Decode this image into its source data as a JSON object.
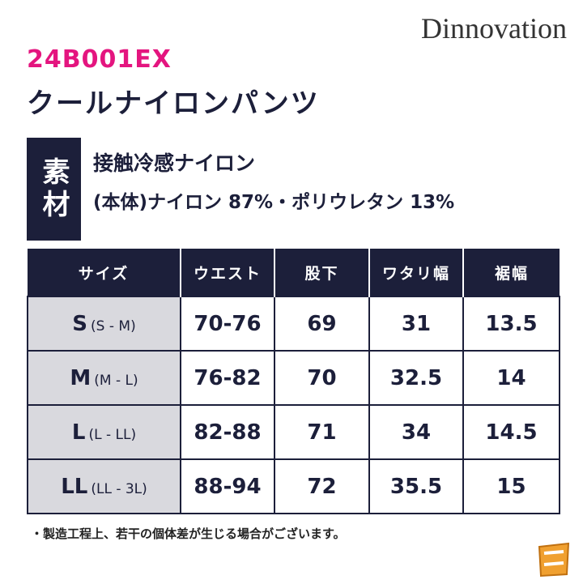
{
  "brand": "Dinnovation",
  "product": {
    "code": "24B001EX",
    "name": "クールナイロンパンツ"
  },
  "material": {
    "label": "素材",
    "lines": [
      "接触冷感ナイロン",
      "(本体)ナイロン 87%・ポリウレタン 13%"
    ]
  },
  "table": {
    "header": [
      "サイズ",
      "ウエスト",
      "股下",
      "ワタリ幅",
      "裾幅"
    ],
    "rows": [
      {
        "size": "S",
        "range": "(S - M)",
        "cells": [
          "70-76",
          "69",
          "31",
          "13.5"
        ]
      },
      {
        "size": "M",
        "range": "(M - L)",
        "cells": [
          "76-82",
          "70",
          "32.5",
          "14"
        ]
      },
      {
        "size": "L",
        "range": "(L - LL)",
        "cells": [
          "82-88",
          "71",
          "34",
          "14.5"
        ]
      },
      {
        "size": "LL",
        "range": "(LL - 3L)",
        "cells": [
          "88-94",
          "72",
          "35.5",
          "15"
        ]
      }
    ]
  },
  "note": "・製造工程上、若干の個体差が生じる場合がございます。"
}
